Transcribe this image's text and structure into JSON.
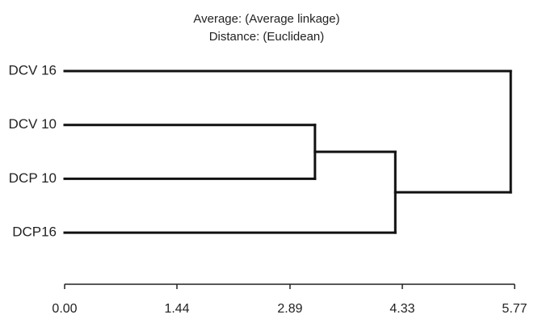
{
  "chart_data": {
    "type": "dendrogram",
    "title": "Average: (Average linkage)",
    "subtitle": "Distance: (Euclidean)",
    "leaves": [
      "DCV 16",
      "DCV 10",
      "DCP 10",
      "DCP16"
    ],
    "merges": [
      {
        "children": [
          1,
          2
        ],
        "height": 3.21
      },
      {
        "children": [
          4,
          3
        ],
        "height": 4.24
      },
      {
        "children": [
          0,
          5
        ],
        "height": 5.72
      }
    ],
    "xlim": [
      0,
      5.77
    ],
    "xticks": [
      {
        "value": 0,
        "label": "0.00"
      },
      {
        "value": 1.44,
        "label": "1.44"
      },
      {
        "value": 2.89,
        "label": "2.89"
      },
      {
        "value": 4.33,
        "label": "4.33"
      },
      {
        "value": 5.77,
        "label": "5.77"
      }
    ],
    "color": "#111111"
  }
}
